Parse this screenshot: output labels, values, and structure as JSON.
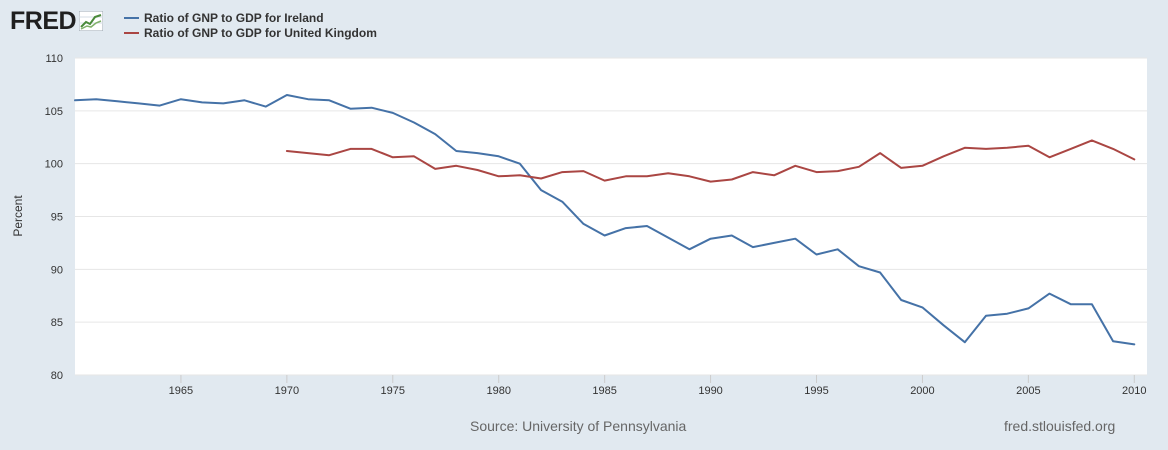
{
  "logo": {
    "text": "FRED"
  },
  "chart_data": {
    "type": "line",
    "title": "",
    "xlabel": "",
    "ylabel": "Percent",
    "xlim": [
      1960,
      2010.6
    ],
    "ylim": [
      80,
      110
    ],
    "yticks": [
      80,
      85,
      90,
      95,
      100,
      105,
      110
    ],
    "xticks": [
      1965,
      1970,
      1975,
      1980,
      1985,
      1990,
      1995,
      2000,
      2005,
      2010
    ],
    "grid": true,
    "legend_position": "top-left",
    "series": [
      {
        "name": "Ratio of GNP to GDP for Ireland",
        "color": "#4572a7",
        "x": [
          1960,
          1961,
          1962,
          1963,
          1964,
          1965,
          1966,
          1967,
          1968,
          1969,
          1970,
          1971,
          1972,
          1973,
          1974,
          1975,
          1976,
          1977,
          1978,
          1979,
          1980,
          1981,
          1982,
          1983,
          1984,
          1985,
          1986,
          1987,
          1988,
          1989,
          1990,
          1991,
          1992,
          1993,
          1994,
          1995,
          1996,
          1997,
          1998,
          1999,
          2000,
          2001,
          2002,
          2003,
          2004,
          2005,
          2006,
          2007,
          2008,
          2009,
          2010
        ],
        "values": [
          106.0,
          106.1,
          105.9,
          105.7,
          105.5,
          106.1,
          105.8,
          105.7,
          106.0,
          105.4,
          106.5,
          106.1,
          106.0,
          105.2,
          105.3,
          104.8,
          103.9,
          102.8,
          101.2,
          101.0,
          100.7,
          100.0,
          97.5,
          96.4,
          94.3,
          93.2,
          93.9,
          94.1,
          93.0,
          91.9,
          92.9,
          93.2,
          92.1,
          92.5,
          92.9,
          91.4,
          91.9,
          90.3,
          89.7,
          87.1,
          86.4,
          84.7,
          83.1,
          85.6,
          85.8,
          86.3,
          87.7,
          86.7,
          86.7,
          83.2,
          82.9
        ]
      },
      {
        "name": "Ratio of GNP to GDP for United Kingdom",
        "color": "#aa4643",
        "x": [
          1970,
          1971,
          1972,
          1973,
          1974,
          1975,
          1976,
          1977,
          1978,
          1979,
          1980,
          1981,
          1982,
          1983,
          1984,
          1985,
          1986,
          1987,
          1988,
          1989,
          1990,
          1991,
          1992,
          1993,
          1994,
          1995,
          1996,
          1997,
          1998,
          1999,
          2000,
          2001,
          2002,
          2003,
          2004,
          2005,
          2006,
          2007,
          2008,
          2009,
          2010
        ],
        "values": [
          101.2,
          101.0,
          100.8,
          101.4,
          101.4,
          100.6,
          100.7,
          99.5,
          99.8,
          99.4,
          98.8,
          98.9,
          98.6,
          99.2,
          99.3,
          98.4,
          98.8,
          98.8,
          99.1,
          98.8,
          98.3,
          98.5,
          99.2,
          98.9,
          99.8,
          99.2,
          99.3,
          99.7,
          101.0,
          99.6,
          99.8,
          100.7,
          101.5,
          101.4,
          101.5,
          101.7,
          100.6,
          101.4,
          102.2,
          101.4,
          100.4
        ]
      }
    ]
  },
  "footer": {
    "source": "Source: University of Pennsylvania",
    "site": "fred.stlouisfed.org"
  }
}
